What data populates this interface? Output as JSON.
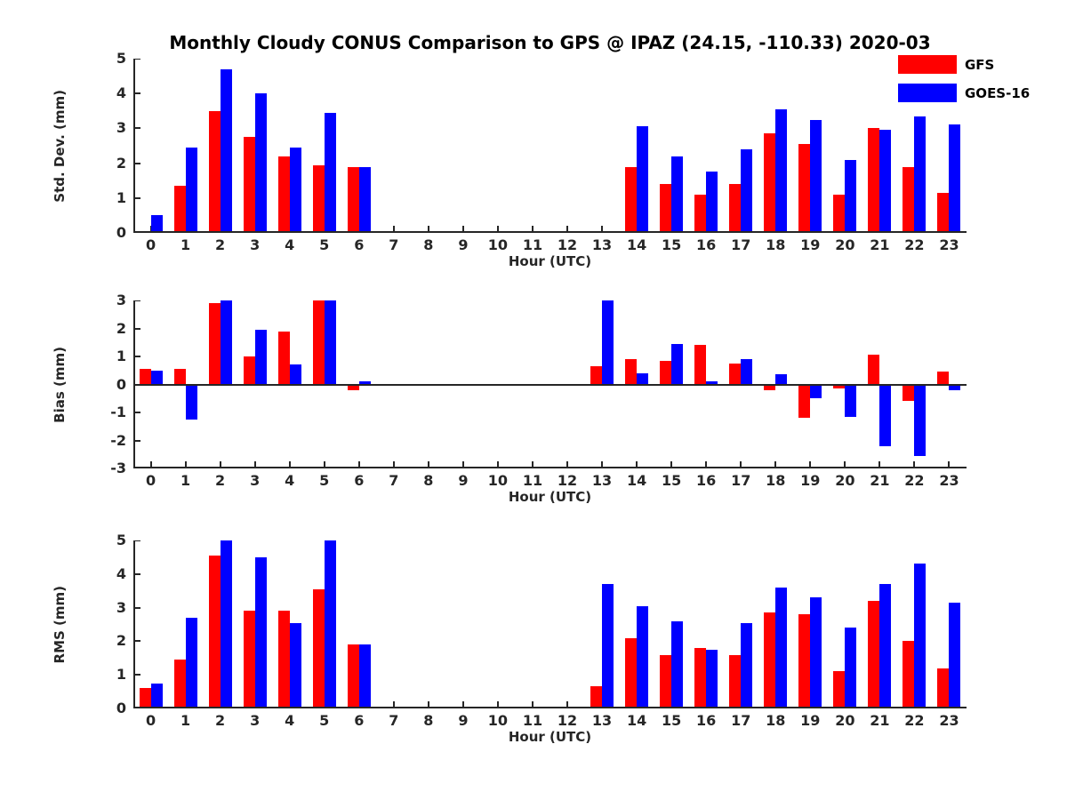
{
  "title": "Monthly Cloudy CONUS Comparison to GPS @ IPAZ (24.15, -110.33) 2020-03",
  "colors": {
    "gfs": "#ff0000",
    "goes16": "#0000ff",
    "axis": "#262626"
  },
  "legend": [
    {
      "label": "GFS",
      "color": "#ff0000"
    },
    {
      "label": "GOES-16",
      "color": "#0000ff"
    }
  ],
  "chart_data": [
    {
      "type": "bar",
      "ylabel": "Std. Dev. (mm)",
      "xlabel": "Hour (UTC)",
      "ylim": [
        0,
        5
      ],
      "yticks": [
        0,
        1,
        2,
        3,
        4,
        5
      ],
      "x": [
        0,
        1,
        2,
        3,
        4,
        5,
        6,
        7,
        8,
        9,
        10,
        11,
        12,
        13,
        14,
        15,
        16,
        17,
        18,
        19,
        20,
        21,
        22,
        23
      ],
      "series": [
        {
          "name": "GFS",
          "color": "#ff0000",
          "values": [
            null,
            1.35,
            3.5,
            2.75,
            2.2,
            1.95,
            1.9,
            null,
            null,
            null,
            null,
            null,
            null,
            null,
            1.9,
            1.4,
            1.1,
            1.4,
            2.85,
            2.55,
            1.1,
            3.0,
            1.9,
            1.15
          ]
        },
        {
          "name": "GOES-16",
          "color": "#0000ff",
          "values": [
            0.5,
            2.45,
            4.7,
            4.0,
            2.45,
            3.45,
            1.9,
            null,
            null,
            null,
            null,
            null,
            null,
            null,
            3.05,
            2.2,
            1.75,
            2.4,
            3.55,
            3.25,
            2.1,
            2.95,
            3.35,
            3.1
          ]
        }
      ]
    },
    {
      "type": "bar",
      "ylabel": "Bias (mm)",
      "xlabel": "Hour (UTC)",
      "ylim": [
        -3,
        3
      ],
      "yticks": [
        -3,
        -2,
        -1,
        0,
        1,
        2,
        3
      ],
      "x": [
        0,
        1,
        2,
        3,
        4,
        5,
        6,
        7,
        8,
        9,
        10,
        11,
        12,
        13,
        14,
        15,
        16,
        17,
        18,
        19,
        20,
        21,
        22,
        23
      ],
      "series": [
        {
          "name": "GFS",
          "color": "#ff0000",
          "values": [
            0.55,
            0.55,
            2.9,
            1.0,
            1.9,
            3.0,
            -0.2,
            null,
            null,
            null,
            null,
            null,
            null,
            0.65,
            0.9,
            0.85,
            1.4,
            0.75,
            -0.2,
            -1.2,
            -0.15,
            1.05,
            -0.6,
            0.45
          ]
        },
        {
          "name": "GOES-16",
          "color": "#0000ff",
          "values": [
            0.5,
            -1.25,
            3.0,
            1.95,
            0.7,
            3.0,
            0.1,
            null,
            null,
            null,
            null,
            null,
            null,
            3.0,
            0.4,
            1.45,
            0.1,
            0.9,
            0.35,
            -0.5,
            -1.15,
            -2.2,
            -2.55,
            -0.2
          ]
        }
      ]
    },
    {
      "type": "bar",
      "ylabel": "RMS (mm)",
      "xlabel": "Hour (UTC)",
      "ylim": [
        0,
        5
      ],
      "yticks": [
        0,
        1,
        2,
        3,
        4,
        5
      ],
      "x": [
        0,
        1,
        2,
        3,
        4,
        5,
        6,
        7,
        8,
        9,
        10,
        11,
        12,
        13,
        14,
        15,
        16,
        17,
        18,
        19,
        20,
        21,
        22,
        23
      ],
      "series": [
        {
          "name": "GFS",
          "color": "#ff0000",
          "values": [
            0.6,
            1.45,
            4.55,
            2.9,
            2.9,
            3.55,
            1.9,
            null,
            null,
            null,
            null,
            null,
            null,
            0.65,
            2.1,
            1.6,
            1.8,
            1.6,
            2.85,
            2.8,
            1.1,
            3.2,
            2.0,
            1.2
          ]
        },
        {
          "name": "GOES-16",
          "color": "#0000ff",
          "values": [
            0.75,
            2.7,
            5.0,
            4.5,
            2.55,
            5.0,
            1.9,
            null,
            null,
            null,
            null,
            null,
            null,
            3.7,
            3.05,
            2.6,
            1.75,
            2.55,
            3.6,
            3.3,
            2.4,
            3.7,
            4.3,
            3.15
          ]
        }
      ]
    }
  ]
}
